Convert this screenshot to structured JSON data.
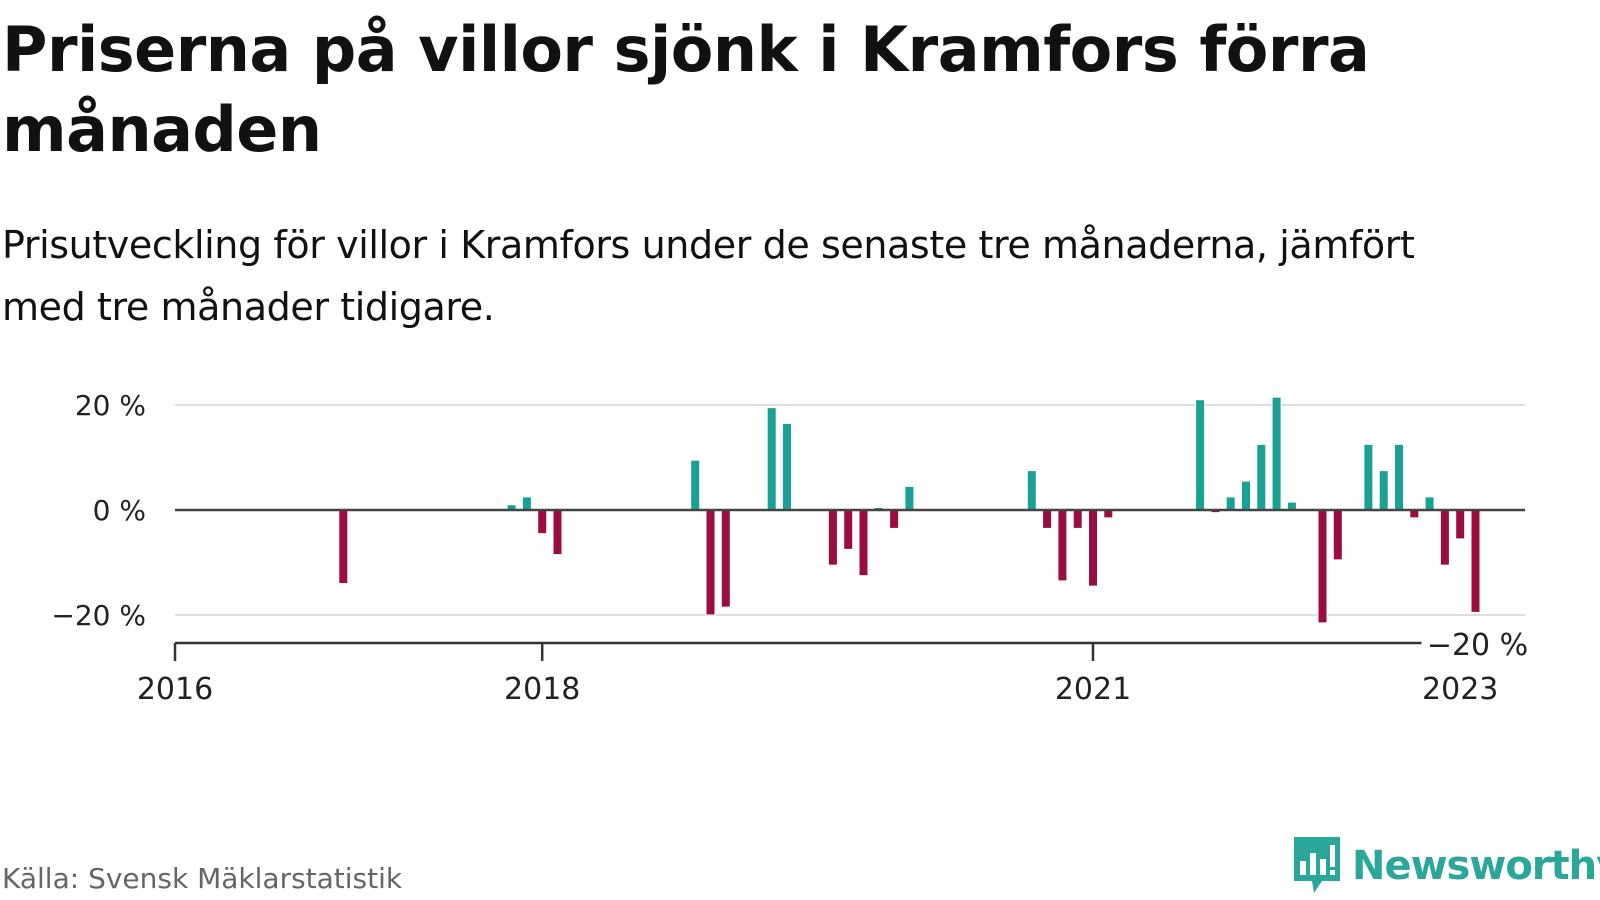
{
  "title": "Priserna på villor sjönk i Kramfors förra månaden",
  "subtitle": "Prisutveckling för villor i Kramfors under de senaste tre månaderna, jämfört med tre månader tidigare.",
  "source": "Källa: Svensk Mäklarstatistik",
  "brand": {
    "name": "Newsworthy",
    "logo_icon": "newsworthy-bar-chart-logo-icon"
  },
  "colors": {
    "positive": "#1aa195",
    "negative": "#9b0c40",
    "grid": "#dddddd",
    "zero_line": "#444444",
    "axis": "#333333",
    "brand": "#2ba79a"
  },
  "chart_data": {
    "type": "bar",
    "x_unit": "month",
    "ylim": [
      -25,
      25
    ],
    "y_ticks": [
      20,
      0,
      -20
    ],
    "y_tick_labels": [
      "20 %",
      "0 %",
      "−20 %"
    ],
    "x_ticks": [
      "2016-01",
      "2018-01",
      "2021-01",
      "2023-01"
    ],
    "x_tick_labels": [
      "2016",
      "2018",
      "2021",
      "2023"
    ],
    "grid": true,
    "series": [
      {
        "values": [
          {
            "x": "2016-12",
            "y": -14
          },
          {
            "x": "2017-11",
            "y": 1
          },
          {
            "x": "2017-12",
            "y": 2.5
          },
          {
            "x": "2018-01",
            "y": -4.5
          },
          {
            "x": "2018-02",
            "y": -8.5
          },
          {
            "x": "2018-11",
            "y": 9.5
          },
          {
            "x": "2018-12",
            "y": -20
          },
          {
            "x": "2019-01",
            "y": -18.5
          },
          {
            "x": "2019-04",
            "y": 19.5
          },
          {
            "x": "2019-05",
            "y": 16.5
          },
          {
            "x": "2019-08",
            "y": -10.5
          },
          {
            "x": "2019-09",
            "y": -7.5
          },
          {
            "x": "2019-10",
            "y": -12.5
          },
          {
            "x": "2019-11",
            "y": 0.5
          },
          {
            "x": "2019-12",
            "y": -3.5
          },
          {
            "x": "2020-01",
            "y": 4.5
          },
          {
            "x": "2020-09",
            "y": 7.5
          },
          {
            "x": "2020-10",
            "y": -3.5
          },
          {
            "x": "2020-11",
            "y": -13.5
          },
          {
            "x": "2020-12",
            "y": -3.5
          },
          {
            "x": "2021-01",
            "y": -14.5
          },
          {
            "x": "2021-02",
            "y": -1.5
          },
          {
            "x": "2021-08",
            "y": 21
          },
          {
            "x": "2021-09",
            "y": -0.5
          },
          {
            "x": "2021-10",
            "y": 2.5
          },
          {
            "x": "2021-11",
            "y": 5.5
          },
          {
            "x": "2021-12",
            "y": 12.5
          },
          {
            "x": "2022-01",
            "y": 21.5
          },
          {
            "x": "2022-02",
            "y": 1.5
          },
          {
            "x": "2022-04",
            "y": -21.5
          },
          {
            "x": "2022-05",
            "y": -9.5
          },
          {
            "x": "2022-07",
            "y": 12.5
          },
          {
            "x": "2022-08",
            "y": 7.5
          },
          {
            "x": "2022-09",
            "y": 12.5
          },
          {
            "x": "2022-10",
            "y": -1.5
          },
          {
            "x": "2022-11",
            "y": 2.5
          },
          {
            "x": "2022-12",
            "y": -10.5
          },
          {
            "x": "2023-01",
            "y": -5.5
          },
          {
            "x": "2023-02",
            "y": -19.5
          }
        ]
      }
    ],
    "annotations": [
      {
        "x": "2023-02",
        "y": -20,
        "label": "−20 %"
      }
    ]
  }
}
